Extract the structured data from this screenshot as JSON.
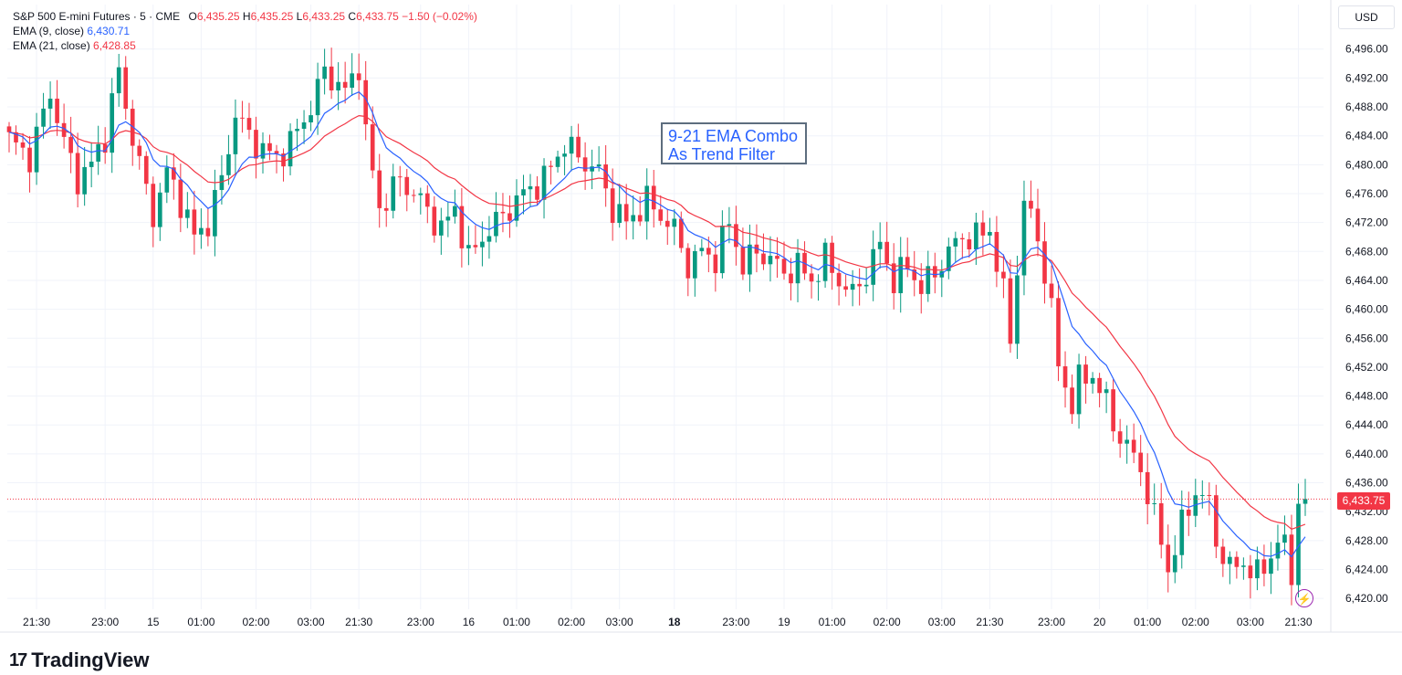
{
  "legend": {
    "symbol": "S&P 500 E-mini Futures · 5 · CME",
    "o_label": "O",
    "o": "6,435.25",
    "h_label": "H",
    "h": "6,435.25",
    "l_label": "L",
    "l": "6,433.25",
    "c_label": "C",
    "c": "6,433.75",
    "change": "−1.50 (−0.02%)",
    "ema9_label": "EMA (9, close)",
    "ema9_value": "6,430.71",
    "ema21_label": "EMA (21, close)",
    "ema21_value": "6,428.85"
  },
  "currency": "USD",
  "annotation": {
    "line1": "9-21 EMA Combo",
    "line2": "As Trend Filter"
  },
  "last_price_tag": "6,433.75",
  "logo": {
    "mark": "17",
    "text": "TradingView"
  },
  "alert_icon": "lightning-icon",
  "colors": {
    "up": "#089981",
    "down": "#f23645",
    "ema9": "#2962ff",
    "ema21": "#f23645",
    "grid": "#f0f3fa",
    "accent": "#9c27b0"
  },
  "chart_data": {
    "type": "candlestick",
    "interval": "5",
    "y_axis": {
      "ticks": [
        6420,
        6424,
        6428,
        6432,
        6436,
        6440,
        6444,
        6448,
        6452,
        6456,
        6460,
        6464,
        6468,
        6472,
        6476,
        6480,
        6484,
        6488,
        6492,
        6496
      ],
      "tick_labels": [
        "6,420.00",
        "6,424.00",
        "6,428.00",
        "6,432.00",
        "6,436.00",
        "6,440.00",
        "6,444.00",
        "6,448.00",
        "6,452.00",
        "6,456.00",
        "6,460.00",
        "6,464.00",
        "6,468.00",
        "6,472.00",
        "6,476.00",
        "6,480.00",
        "6,484.00",
        "6,488.00",
        "6,492.00",
        "6,496.00"
      ],
      "ylim": [
        6418.5,
        6499
      ]
    },
    "x_axis": {
      "labels": [
        "21:30",
        "23:00",
        "15",
        "01:00",
        "02:00",
        "03:00",
        "21:30",
        "23:00",
        "16",
        "01:00",
        "02:00",
        "03:00",
        "18",
        "23:00",
        "19",
        "01:00",
        "02:00",
        "03:00",
        "21:30",
        "23:00",
        "20",
        "01:00",
        "02:00",
        "03:00",
        "21:30"
      ],
      "bold": [
        "18"
      ],
      "label_bar_index": [
        4,
        14,
        21,
        28,
        36,
        44,
        51,
        60,
        67,
        74,
        82,
        89,
        97,
        106,
        113,
        120,
        128,
        136,
        143,
        152,
        159,
        166,
        173,
        181,
        188
      ]
    },
    "last_price": 6433.75,
    "series": [
      {
        "name": "EMA (9, close)",
        "color": "#2962ff"
      },
      {
        "name": "EMA (21, close)",
        "color": "#f23645"
      }
    ],
    "close_anchors": [
      [
        0,
        6483.5
      ],
      [
        3,
        6481
      ],
      [
        5,
        6487
      ],
      [
        6,
        6490
      ],
      [
        8,
        6483
      ],
      [
        10,
        6478
      ],
      [
        12,
        6480
      ],
      [
        14,
        6484
      ],
      [
        16,
        6493
      ],
      [
        17,
        6488
      ],
      [
        19,
        6480
      ],
      [
        21,
        6473
      ],
      [
        23,
        6479
      ],
      [
        25,
        6475
      ],
      [
        27,
        6470
      ],
      [
        29,
        6472
      ],
      [
        31,
        6478
      ],
      [
        33,
        6487
      ],
      [
        35,
        6484
      ],
      [
        37,
        6482
      ],
      [
        39,
        6481
      ],
      [
        41,
        6483
      ],
      [
        44,
        6488
      ],
      [
        46,
        6493
      ],
      [
        49,
        6490
      ],
      [
        51,
        6494
      ],
      [
        52,
        6484
      ],
      [
        54,
        6474
      ],
      [
        57,
        6478
      ],
      [
        60,
        6475
      ],
      [
        63,
        6471
      ],
      [
        65,
        6474
      ],
      [
        67,
        6467
      ],
      [
        69,
        6470
      ],
      [
        72,
        6473
      ],
      [
        75,
        6476
      ],
      [
        78,
        6478
      ],
      [
        81,
        6483
      ],
      [
        83,
        6481
      ],
      [
        86,
        6479
      ],
      [
        88,
        6474
      ],
      [
        90,
        6472
      ],
      [
        93,
        6475
      ],
      [
        95,
        6473
      ],
      [
        97,
        6471
      ],
      [
        99,
        6466
      ],
      [
        101,
        6468
      ],
      [
        103,
        6467
      ],
      [
        105,
        6472
      ],
      [
        107,
        6466
      ],
      [
        109,
        6468
      ],
      [
        111,
        6467
      ],
      [
        113,
        6465
      ],
      [
        115,
        6466
      ],
      [
        117,
        6464
      ],
      [
        119,
        6467
      ],
      [
        121,
        6464
      ],
      [
        123,
        6462
      ],
      [
        125,
        6465
      ],
      [
        127,
        6469
      ],
      [
        129,
        6464
      ],
      [
        131,
        6466
      ],
      [
        133,
        6463
      ],
      [
        135,
        6465
      ],
      [
        137,
        6468
      ],
      [
        139,
        6470
      ],
      [
        141,
        6470
      ],
      [
        143,
        6471
      ],
      [
        145,
        6462
      ],
      [
        146,
        6456
      ],
      [
        148,
        6475
      ],
      [
        150,
        6470
      ],
      [
        152,
        6460
      ],
      [
        153,
        6452
      ],
      [
        155,
        6447
      ],
      [
        156,
        6450
      ],
      [
        158,
        6451
      ],
      [
        160,
        6447
      ],
      [
        161,
        6444
      ],
      [
        163,
        6441
      ],
      [
        165,
        6438
      ],
      [
        167,
        6431
      ],
      [
        168,
        6428
      ],
      [
        169,
        6424
      ],
      [
        171,
        6430
      ],
      [
        173,
        6435
      ],
      [
        175,
        6433
      ],
      [
        176,
        6428
      ],
      [
        178,
        6424
      ],
      [
        180,
        6425
      ],
      [
        182,
        6423
      ],
      [
        184,
        6426
      ],
      [
        185,
        6428
      ],
      [
        186,
        6427
      ],
      [
        187,
        6423
      ],
      [
        188,
        6434
      ],
      [
        189,
        6433.75
      ]
    ]
  }
}
